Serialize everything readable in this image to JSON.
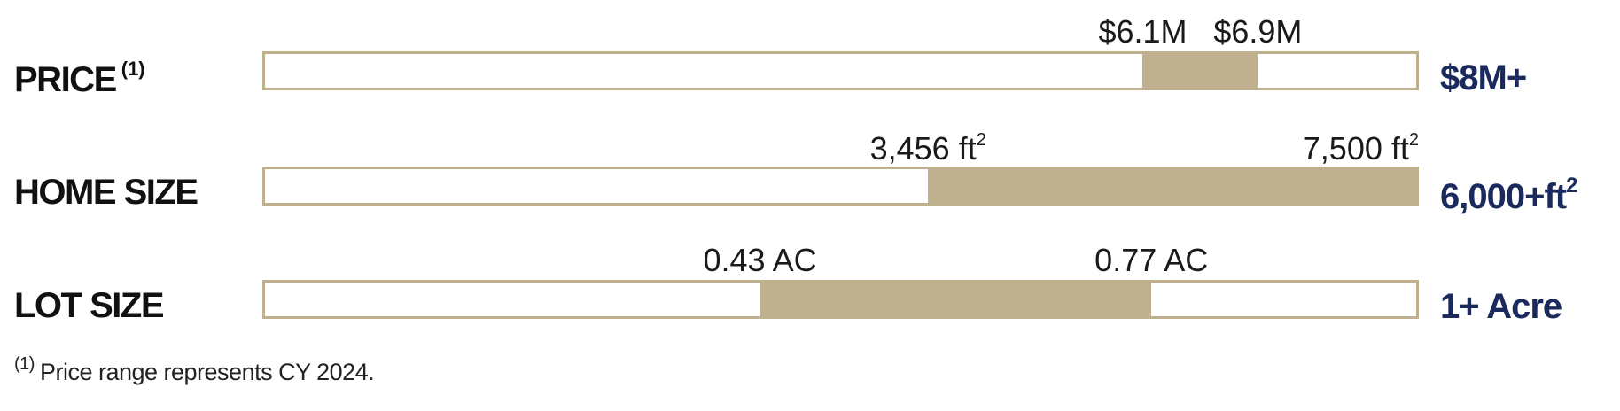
{
  "chart_data": {
    "type": "bar",
    "subtype": "range-bars",
    "colors": {
      "fill": "#bfb08f",
      "track_border": "#bfb08f",
      "end_label": "#1b2a5c",
      "text": "#111111"
    },
    "rows": [
      {
        "label": "PRICE",
        "label_note": "(1)",
        "low": 6.1,
        "high": 6.9,
        "low_label": "$6.1M",
        "high_label": "$6.9M",
        "unit_sup": "",
        "scale_max": 8,
        "end_label": "$8M+",
        "end_sup": ""
      },
      {
        "label": "HOME SIZE",
        "label_note": "",
        "low": 3456,
        "high": 7500,
        "low_label": "3,456 ft",
        "high_label": "7,500 ft",
        "unit_sup": "2",
        "scale_max": 6000,
        "end_label": "6,000+ft",
        "end_sup": "2"
      },
      {
        "label": "LOT SIZE",
        "label_note": "",
        "low": 0.43,
        "high": 0.77,
        "low_label": "0.43 AC",
        "high_label": "0.77 AC",
        "unit_sup": "",
        "scale_max": 1,
        "end_label": "1+ Acre",
        "end_sup": ""
      }
    ]
  },
  "footnote": {
    "marker": "(1)",
    "text": "Price range represents CY 2024."
  }
}
